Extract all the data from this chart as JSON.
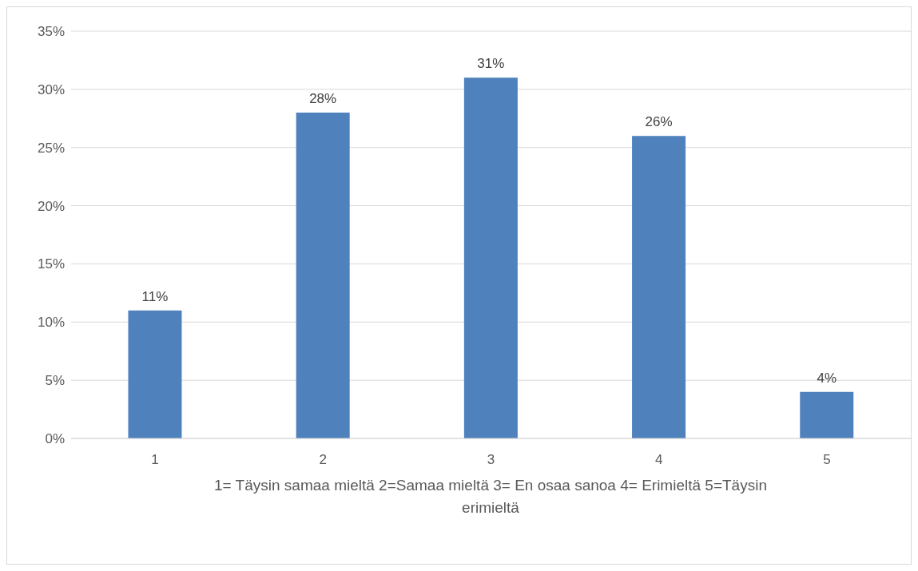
{
  "chart_data": {
    "type": "bar",
    "xlabel": "1= Täysin samaa mieltä 2=Samaa mieltä 3= En osaa sanoa 4= Erimieltä 5=Täysin erimieltä",
    "categories": [
      "1",
      "2",
      "3",
      "4",
      "5"
    ],
    "values": [
      11,
      28,
      31,
      26,
      4
    ],
    "value_labels": [
      "11%",
      "28%",
      "31%",
      "26%",
      "4%"
    ],
    "color": "#4f81bd",
    "ylim": [
      0,
      35
    ],
    "yticks": [
      {
        "value": 0,
        "label": "0%"
      },
      {
        "value": 5,
        "label": "5%"
      },
      {
        "value": 10,
        "label": "10%"
      },
      {
        "value": 15,
        "label": "15%"
      },
      {
        "value": 20,
        "label": "20%"
      },
      {
        "value": 25,
        "label": "25%"
      },
      {
        "value": 30,
        "label": "30%"
      },
      {
        "value": 35,
        "label": "35%"
      }
    ],
    "grid": "y"
  }
}
